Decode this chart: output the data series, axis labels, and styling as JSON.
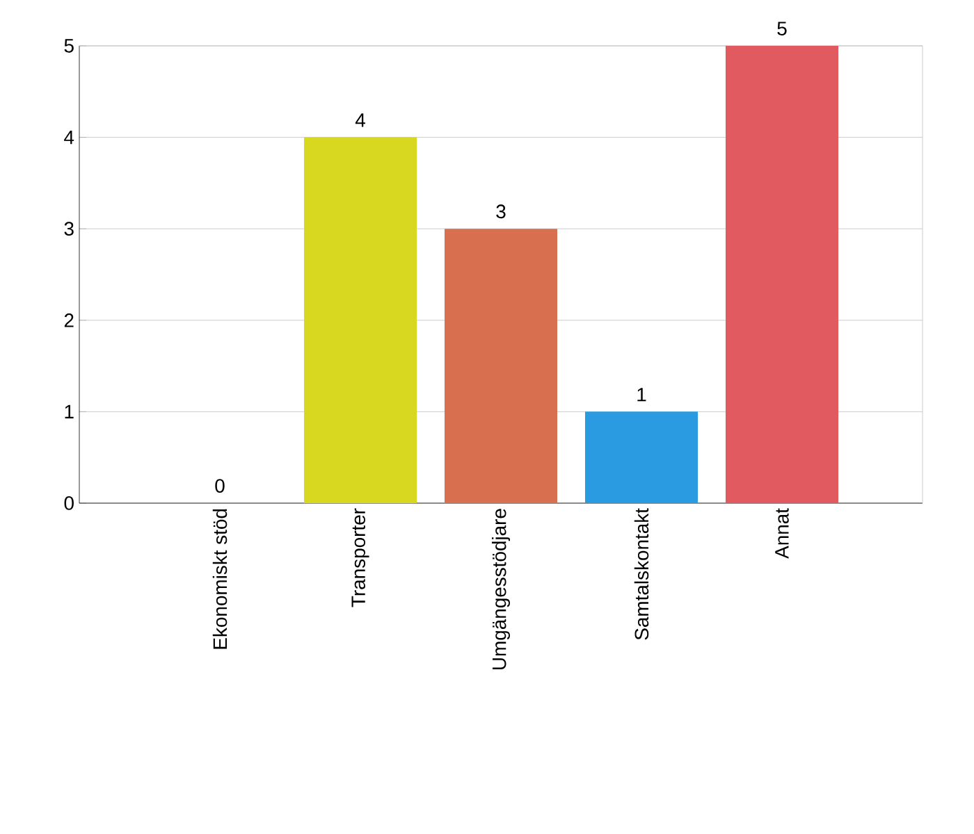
{
  "chart_data": {
    "type": "bar",
    "categories": [
      "Ekonomiskt stöd",
      "Transporter",
      "Umgängesstödjare",
      "Samtalskontakt",
      "Annat"
    ],
    "values": [
      0,
      4,
      3,
      1,
      5
    ],
    "colors": [
      "#8c8c8c",
      "#d8d820",
      "#d8704f",
      "#2a9be0",
      "#e05a60"
    ],
    "ylim": [
      0,
      5
    ],
    "yticks": [
      0,
      1,
      2,
      3,
      4,
      5
    ],
    "grid": "y",
    "data_labels": true
  }
}
